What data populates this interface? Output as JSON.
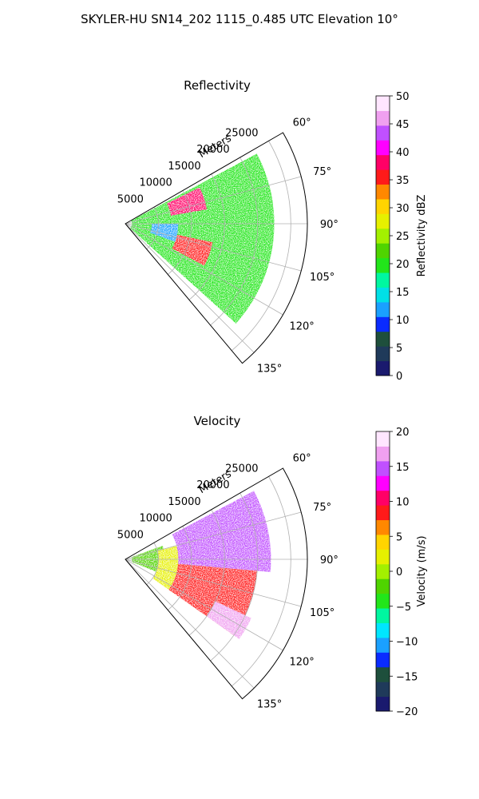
{
  "figure": {
    "suptitle": "SKYLER-HU  SN14_202  1115_0.485 UTC Elevation 10°"
  },
  "chart_data": [
    {
      "type": "heatmap",
      "subtype": "polar-sector (PPI)",
      "title": "Reflectivity",
      "radial_label": "Meters",
      "radial_ticks": [
        5000,
        10000,
        15000,
        20000,
        25000
      ],
      "radial_tick_labels": [
        "5000",
        "10000",
        "15000",
        "20000",
        "25000"
      ],
      "rlim": [
        0,
        27500
      ],
      "azimuth_range_deg": [
        60,
        140
      ],
      "azimuth_ticks": [
        60,
        75,
        90,
        105,
        120,
        135
      ],
      "azimuth_tick_labels": [
        "60°",
        "75°",
        "90°",
        "105°",
        "120°",
        "135°"
      ],
      "grid": true,
      "colorbar": {
        "label": "Reflectivity dBZ",
        "range": [
          0,
          50
        ],
        "ticks": [
          0,
          5,
          10,
          15,
          20,
          25,
          30,
          35,
          40,
          45,
          50
        ],
        "tick_labels": [
          "0",
          "5",
          "10",
          "15",
          "20",
          "25",
          "30",
          "35",
          "40",
          "45",
          "50"
        ],
        "colors": [
          "#1a1a6e",
          "#1f3a5a",
          "#1e4f3c",
          "#0a2bff",
          "#1aa0ff",
          "#00e0e6",
          "#00f7a0",
          "#22e61a",
          "#4fd400",
          "#a3f000",
          "#e6f000",
          "#ffd400",
          "#ff8800",
          "#ff1a1a",
          "#ff0066",
          "#ff00ff",
          "#c050ff",
          "#f0a0f0",
          "#ffe6ff"
        ]
      },
      "features": [
        {
          "kind": "echo-field",
          "description": "broad 18–28 dBZ echo",
          "range_m": [
            1000,
            22500
          ],
          "azimuth_deg": [
            62,
            132
          ],
          "value": 21
        },
        {
          "kind": "band",
          "description": "35–40 dBZ arc",
          "range_m": [
            7000,
            12500
          ],
          "azimuth_deg": [
            64,
            80
          ],
          "value": 37
        },
        {
          "kind": "band",
          "description": "35–40 dBZ arc",
          "range_m": [
            8000,
            13500
          ],
          "azimuth_deg": [
            102,
            118
          ],
          "value": 36
        },
        {
          "kind": "patch",
          "description": "weak 10–15 dBZ near radar",
          "range_m": [
            4000,
            8000
          ],
          "azimuth_deg": [
            90,
            110
          ],
          "value": 12
        }
      ]
    },
    {
      "type": "heatmap",
      "subtype": "polar-sector (PPI)",
      "title": "Velocity",
      "radial_label": "Meters",
      "radial_ticks": [
        5000,
        10000,
        15000,
        20000,
        25000
      ],
      "radial_tick_labels": [
        "5000",
        "10000",
        "15000",
        "20000",
        "25000"
      ],
      "rlim": [
        0,
        27500
      ],
      "azimuth_range_deg": [
        60,
        140
      ],
      "azimuth_ticks": [
        60,
        75,
        90,
        105,
        120,
        135
      ],
      "azimuth_tick_labels": [
        "60°",
        "75°",
        "90°",
        "105°",
        "120°",
        "135°"
      ],
      "grid": true,
      "colorbar": {
        "label": "Velocity (m/s)",
        "range": [
          -20,
          20
        ],
        "ticks": [
          -20,
          -15,
          -10,
          -5,
          0,
          5,
          10,
          15,
          20
        ],
        "tick_labels": [
          "−20",
          "−15",
          "−10",
          "−5",
          "0",
          "5",
          "10",
          "15",
          "20"
        ],
        "colors": [
          "#1a1a6e",
          "#1f3a5a",
          "#1e4f3c",
          "#0a2bff",
          "#1aa0ff",
          "#00e6ff",
          "#00f7a0",
          "#22e61a",
          "#4fd400",
          "#a3f000",
          "#e6f000",
          "#ffd400",
          "#ff8800",
          "#ff1a1a",
          "#ff0066",
          "#ff00ff",
          "#c050ff",
          "#f0a0f0",
          "#ffe6ff"
        ]
      },
      "features": [
        {
          "kind": "echo-field",
          "description": "near-radar −5 to 0 m/s",
          "range_m": [
            1000,
            6000
          ],
          "azimuth_deg": [
            70,
            112
          ],
          "value": -3
        },
        {
          "kind": "echo-field",
          "description": "0–5 m/s transition",
          "range_m": [
            5000,
            9500
          ],
          "azimuth_deg": [
            75,
            125
          ],
          "value": 3
        },
        {
          "kind": "echo-field",
          "description": "10–20 m/s outbound (north part)",
          "range_m": [
            8000,
            22000
          ],
          "azimuth_deg": [
            62,
            95
          ],
          "value": 15
        },
        {
          "kind": "echo-field",
          "description": "8–12 m/s outbound (south part)",
          "range_m": [
            8000,
            20000
          ],
          "azimuth_deg": [
            95,
            125
          ],
          "value": 9
        },
        {
          "kind": "patch",
          "description": "15–18 m/s echo far south-east",
          "range_m": [
            15000,
            21000
          ],
          "azimuth_deg": [
            115,
            125
          ],
          "value": 16
        }
      ]
    }
  ]
}
